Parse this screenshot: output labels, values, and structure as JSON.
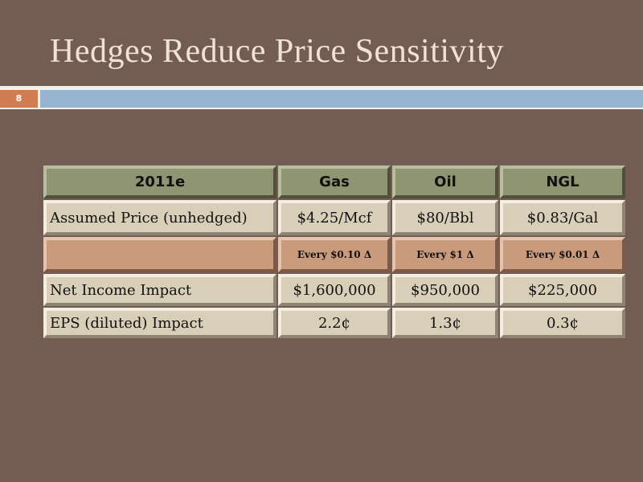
{
  "slide": {
    "title": "Hedges Reduce Price Sensitivity",
    "number": "8",
    "accent_colors": {
      "background": "#725c54",
      "number_badge": "#d07d54",
      "bar": "#97b5d0"
    }
  },
  "table": {
    "headers": [
      "2011e",
      "Gas",
      "Oil",
      "NGL"
    ],
    "rows": [
      [
        "Assumed Price (unhedged)",
        "$4.25/Mcf",
        "$80/Bbl",
        "$0.83/Gal"
      ],
      [
        "",
        "Every $0.10 Δ",
        "Every $1 Δ",
        "Every $0.01 Δ"
      ],
      [
        "Net Income Impact",
        "$1,600,000",
        "$950,000",
        "$225,000"
      ],
      [
        "EPS (diluted) Impact",
        "2.2¢",
        "1.3¢",
        "0.3¢"
      ]
    ]
  }
}
